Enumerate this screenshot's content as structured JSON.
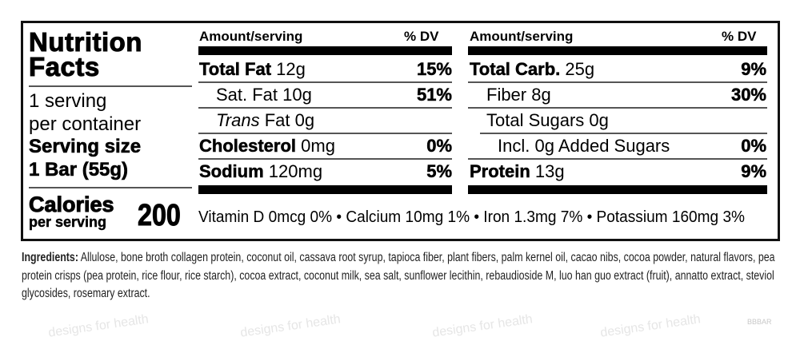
{
  "title_line1": "Nutrition",
  "title_line2": "Facts",
  "servings_line1": "1 serving",
  "servings_line2": "per container",
  "serving_size_label": "Serving size",
  "serving_size_value": "1 Bar (55g)",
  "calories_label": "Calories",
  "calories_sub": "per serving",
  "calories_value": "200",
  "left_table": {
    "header_amount": "Amount/serving",
    "header_dv": "% DV",
    "rows": [
      {
        "name": "Total Fat",
        "amount": "12g",
        "dv": "15%"
      },
      {
        "name": "Sat. Fat",
        "amount": "10g",
        "dv": "51%"
      },
      {
        "name": "Trans",
        "amount": "Fat 0g",
        "dv": ""
      },
      {
        "name": "Cholesterol",
        "amount": "0mg",
        "dv": "0%"
      },
      {
        "name": "Sodium",
        "amount": "120mg",
        "dv": "5%"
      }
    ]
  },
  "right_table": {
    "header_amount": "Amount/serving",
    "header_dv": "% DV",
    "rows": [
      {
        "name": "Total Carb.",
        "amount": "25g",
        "dv": "9%"
      },
      {
        "name": "Fiber",
        "amount": "8g",
        "dv": "30%"
      },
      {
        "name": "Total Sugars",
        "amount": "0g",
        "dv": ""
      },
      {
        "name": "Incl. 0g Added Sugars",
        "amount": "",
        "dv": "0%"
      },
      {
        "name": "Protein",
        "amount": "13g",
        "dv": "9%"
      }
    ]
  },
  "vitamins": "Vitamin D 0mcg 0% • Calcium 10mg 1% • Iron 1.3mg 7% • Potassium 160mg 3%",
  "ingredients": {
    "label": "Ingredients:",
    "line1": "Allulose, bone broth collagen protein, coconut oil, cassava root syrup, tapioca fiber, plant fibers, palm kernel oil, cacao nibs, cocoa powder, natural flavors, pea",
    "line2": "protein crisps (pea protein, rice flour, rice starch), cocoa extract, coconut milk, sea salt, sunflower lecithin, rebaudioside M, luo han guo extract (fruit), annatto extract, steviol",
    "line3": "glycosides, rosemary extract."
  },
  "product_code": "BBBAR",
  "watermark": "designs for health"
}
